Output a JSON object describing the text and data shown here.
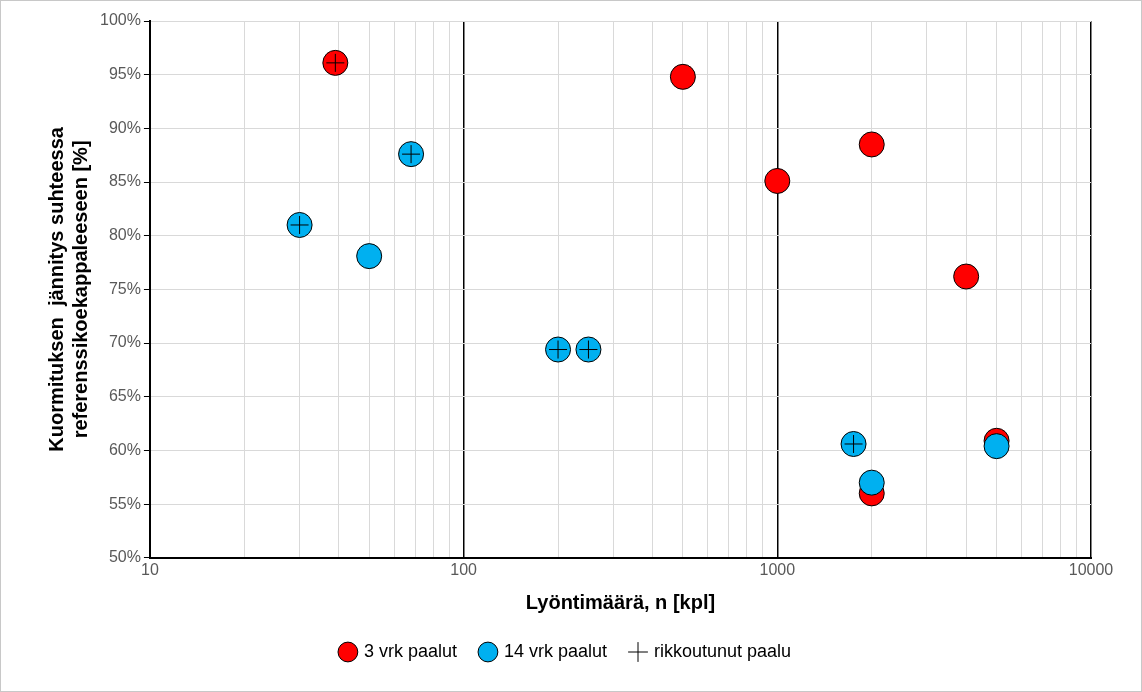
{
  "chart_data": {
    "type": "scatter",
    "xlabel": "Lyöntimäärä, n [kpl]",
    "ylabel": "Kuormituksen  jännitys suhteessa\nreferenssikoekappaleeseen [%]",
    "log": "x",
    "grid": true,
    "legend": "bottom",
    "xlim": [
      10,
      10000
    ],
    "xticks": [
      10,
      {
        "value": 20,
        "label": null
      },
      {
        "value": 30,
        "label": null
      },
      {
        "value": 40,
        "label": null
      },
      {
        "value": 50,
        "label": null
      },
      {
        "value": 60,
        "label": null
      },
      {
        "value": 70,
        "label": null
      },
      {
        "value": 80,
        "label": null
      },
      {
        "value": 90,
        "label": null
      },
      100,
      {
        "value": 200,
        "label": null
      },
      {
        "value": 300,
        "label": null
      },
      {
        "value": 400,
        "label": null
      },
      {
        "value": 500,
        "label": null
      },
      {
        "value": 600,
        "label": null
      },
      {
        "value": 700,
        "label": null
      },
      {
        "value": 800,
        "label": null
      },
      {
        "value": 900,
        "label": null
      },
      1000,
      {
        "value": 2000,
        "label": null
      },
      {
        "value": 3000,
        "label": null
      },
      {
        "value": 4000,
        "label": null
      },
      {
        "value": 5000,
        "label": null
      },
      {
        "value": 6000,
        "label": null
      },
      {
        "value": 7000,
        "label": null
      },
      {
        "value": 8000,
        "label": null
      },
      {
        "value": 9000,
        "label": null
      },
      10000
    ],
    "ylim": [
      50,
      100
    ],
    "yticks": [
      {
        "value": 50,
        "label": "50%"
      },
      {
        "value": 55,
        "label": "55%"
      },
      {
        "value": 60,
        "label": "60%"
      },
      {
        "value": 65,
        "label": "65%"
      },
      {
        "value": 70,
        "label": "70%"
      },
      {
        "value": 75,
        "label": "75%"
      },
      {
        "value": 80,
        "label": "80%"
      },
      {
        "value": 85,
        "label": "85%"
      },
      {
        "value": 90,
        "label": "90%"
      },
      {
        "value": 95,
        "label": "95%"
      },
      {
        "value": 100,
        "label": "100%"
      }
    ],
    "series": [
      {
        "name": "3 vrk paalut",
        "color": "#ff0000",
        "marker": "circle",
        "x": [
          39,
          500,
          1000,
          2000,
          4000,
          5000,
          2000
        ],
        "values": [
          96.1,
          94.8,
          85.1,
          88.5,
          76.2,
          60.9,
          56.0
        ]
      },
      {
        "name": "14 vrk paalut",
        "color": "#00b0f0",
        "marker": "circle",
        "x": [
          30,
          50,
          68,
          200,
          250,
          1750,
          2000,
          5000
        ],
        "values": [
          81.0,
          78.1,
          87.6,
          69.4,
          69.4,
          60.6,
          57.0,
          60.4
        ]
      },
      {
        "name": "rikkoutunut paalu",
        "color": "#000000",
        "marker": "cross",
        "x": [
          39,
          30,
          68,
          200,
          250,
          1750
        ],
        "values": [
          96.1,
          81.0,
          87.6,
          69.4,
          69.4,
          60.6
        ]
      }
    ]
  }
}
